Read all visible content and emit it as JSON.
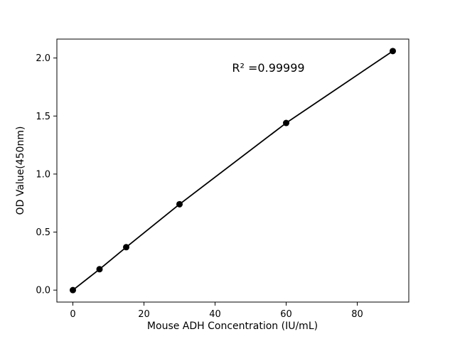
{
  "chart_data": {
    "type": "line",
    "series_name": "standard-curve",
    "x": [
      0,
      7.5,
      15,
      30,
      60,
      90
    ],
    "y": [
      0.0,
      0.18,
      0.37,
      0.74,
      1.44,
      2.06
    ],
    "title": "",
    "xlabel": "Mouse ADH Concentration (IU/mL)",
    "ylabel": "OD Value(450nm)",
    "xlim": [
      -4.5,
      94.5
    ],
    "ylim": [
      -0.103,
      2.163
    ],
    "xticks": [
      0,
      20,
      40,
      60,
      80
    ],
    "xtick_labels": [
      "0",
      "20",
      "40",
      "60",
      "80"
    ],
    "yticks": [
      0.0,
      0.5,
      1.0,
      1.5,
      2.0
    ],
    "ytick_labels": [
      "0.0",
      "0.5",
      "1.0",
      "1.5",
      "2.0"
    ],
    "grid": false,
    "legend": false,
    "marker": "circle",
    "annotation": {
      "text": "R² =0.99999",
      "x": 55,
      "y": 1.88
    },
    "colors": {
      "line": "#000000",
      "marker": "#000000",
      "background": "#ffffff",
      "axes": "#000000"
    }
  }
}
